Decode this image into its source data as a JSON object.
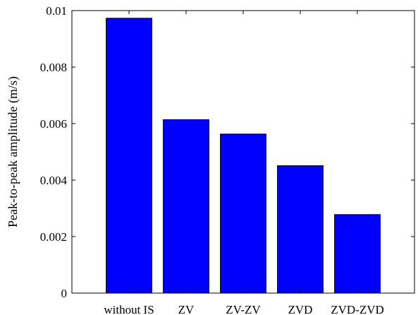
{
  "chart_data": {
    "type": "bar",
    "categories": [
      "without IS",
      "ZV",
      "ZV-ZV",
      "ZVD",
      "ZVD-ZVD"
    ],
    "values": [
      0.00973,
      0.00614,
      0.00563,
      0.00451,
      0.00278
    ],
    "title": "",
    "xlabel": "",
    "ylabel": "Peak-to-peak amplitude (m/s)",
    "ylim": [
      0,
      0.01
    ],
    "yticks": [
      0,
      0.002,
      0.004,
      0.006,
      0.008,
      0.01
    ],
    "ytick_labels": [
      "0",
      "0.002",
      "0.004",
      "0.006",
      "0.008",
      "0.01"
    ],
    "bar_color": "#0000ff",
    "grid": false,
    "box": true
  }
}
